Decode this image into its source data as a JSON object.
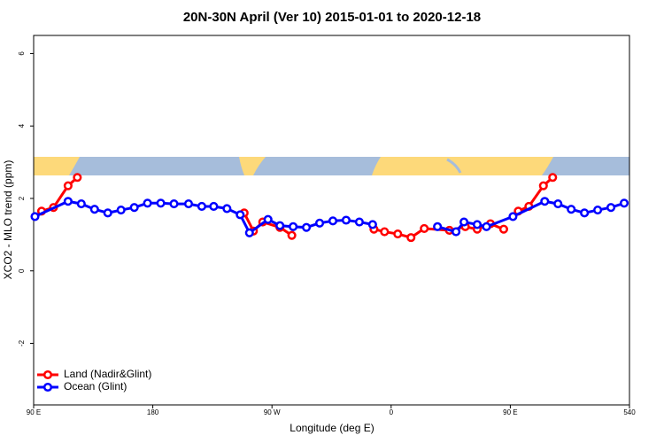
{
  "chart_data": {
    "type": "line",
    "title": "20N-30N April (Ver 10)   2015-01-01 to 2020-12-18",
    "x_label": "Longitude (deg E)",
    "y_label": "XCO2 - MLO trend (ppm)",
    "xlim": [
      90,
      540
    ],
    "ylim": [
      -3.7,
      6.5
    ],
    "xticks": [
      {
        "value": 90,
        "label": "90 E"
      },
      180,
      {
        "value": 270,
        "label": "90 W"
      },
      {
        "value": 360,
        "label": "0"
      },
      {
        "value": 450,
        "label": "90 E"
      },
      540
    ],
    "yticks": [
      -2,
      0,
      2,
      4,
      6
    ],
    "legend": "bottom-left",
    "series": [
      {
        "name": "Land (Nadir&Glint)",
        "color": "#ff0000",
        "x": [
          96,
          105,
          116,
          123,
          null,
          249,
          256,
          263,
          276,
          285,
          null,
          347,
          355,
          365,
          375,
          385,
          404,
          416,
          425,
          435,
          445,
          null,
          456,
          464,
          475,
          482
        ],
        "values": [
          1.65,
          1.75,
          2.35,
          2.58,
          null,
          1.6,
          1.1,
          1.35,
          1.2,
          0.98,
          null,
          1.15,
          1.08,
          1.02,
          0.92,
          1.17,
          1.12,
          1.22,
          1.15,
          1.3,
          1.15,
          null,
          1.65,
          1.78,
          2.35,
          2.58
        ]
      },
      {
        "name": "Ocean (Glint)",
        "color": "#0000ff",
        "x": [
          91,
          116,
          126,
          136,
          146,
          156,
          166,
          176,
          186,
          196,
          207,
          217,
          226,
          236,
          246,
          253,
          267,
          276,
          286,
          296,
          306,
          316,
          326,
          336,
          346,
          null,
          395,
          409,
          415,
          425,
          432,
          452,
          476,
          486,
          496,
          506,
          516,
          526,
          536
        ],
        "values": [
          1.5,
          1.92,
          1.85,
          1.7,
          1.6,
          1.68,
          1.75,
          1.87,
          1.87,
          1.85,
          1.85,
          1.78,
          1.78,
          1.72,
          1.55,
          1.05,
          1.42,
          1.25,
          1.22,
          1.2,
          1.32,
          1.38,
          1.4,
          1.35,
          1.28,
          null,
          1.22,
          1.08,
          1.35,
          1.28,
          1.22,
          1.5,
          1.92,
          1.85,
          1.7,
          1.6,
          1.68,
          1.75,
          1.87
        ]
      }
    ]
  }
}
